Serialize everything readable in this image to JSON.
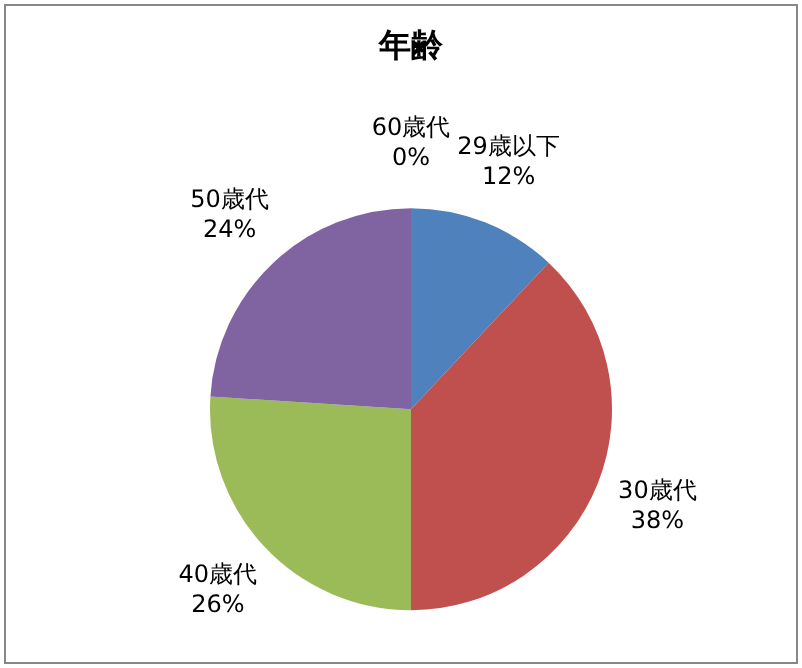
{
  "chart_data": {
    "type": "pie",
    "title": "年齢",
    "categories": [
      "29歳以下",
      "30歳代",
      "40歳代",
      "50歳代",
      "60歳代"
    ],
    "values": [
      12,
      38,
      26,
      24,
      0
    ],
    "colors": [
      "#4f81bd",
      "#c0504d",
      "#9bbb59",
      "#8064a2",
      "#f79646"
    ],
    "value_labels": [
      "12%",
      "38%",
      "26%",
      "24%",
      "0%"
    ],
    "legend": false
  }
}
